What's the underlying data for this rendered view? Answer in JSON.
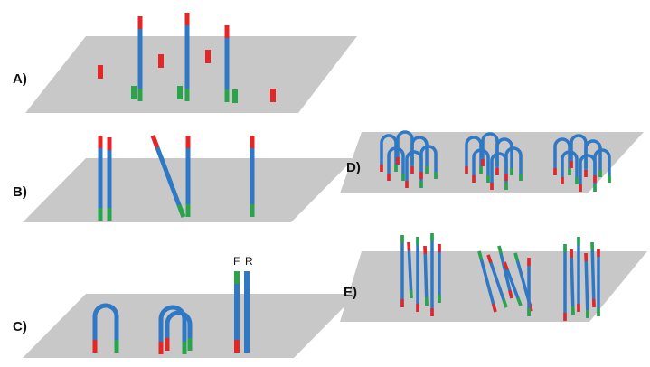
{
  "panels": [
    {
      "label": "A)"
    },
    {
      "label": "B)"
    },
    {
      "label": "C)"
    },
    {
      "label": "D)"
    },
    {
      "label": "E)"
    }
  ],
  "strand_labels": [
    "F",
    "R"
  ]
}
